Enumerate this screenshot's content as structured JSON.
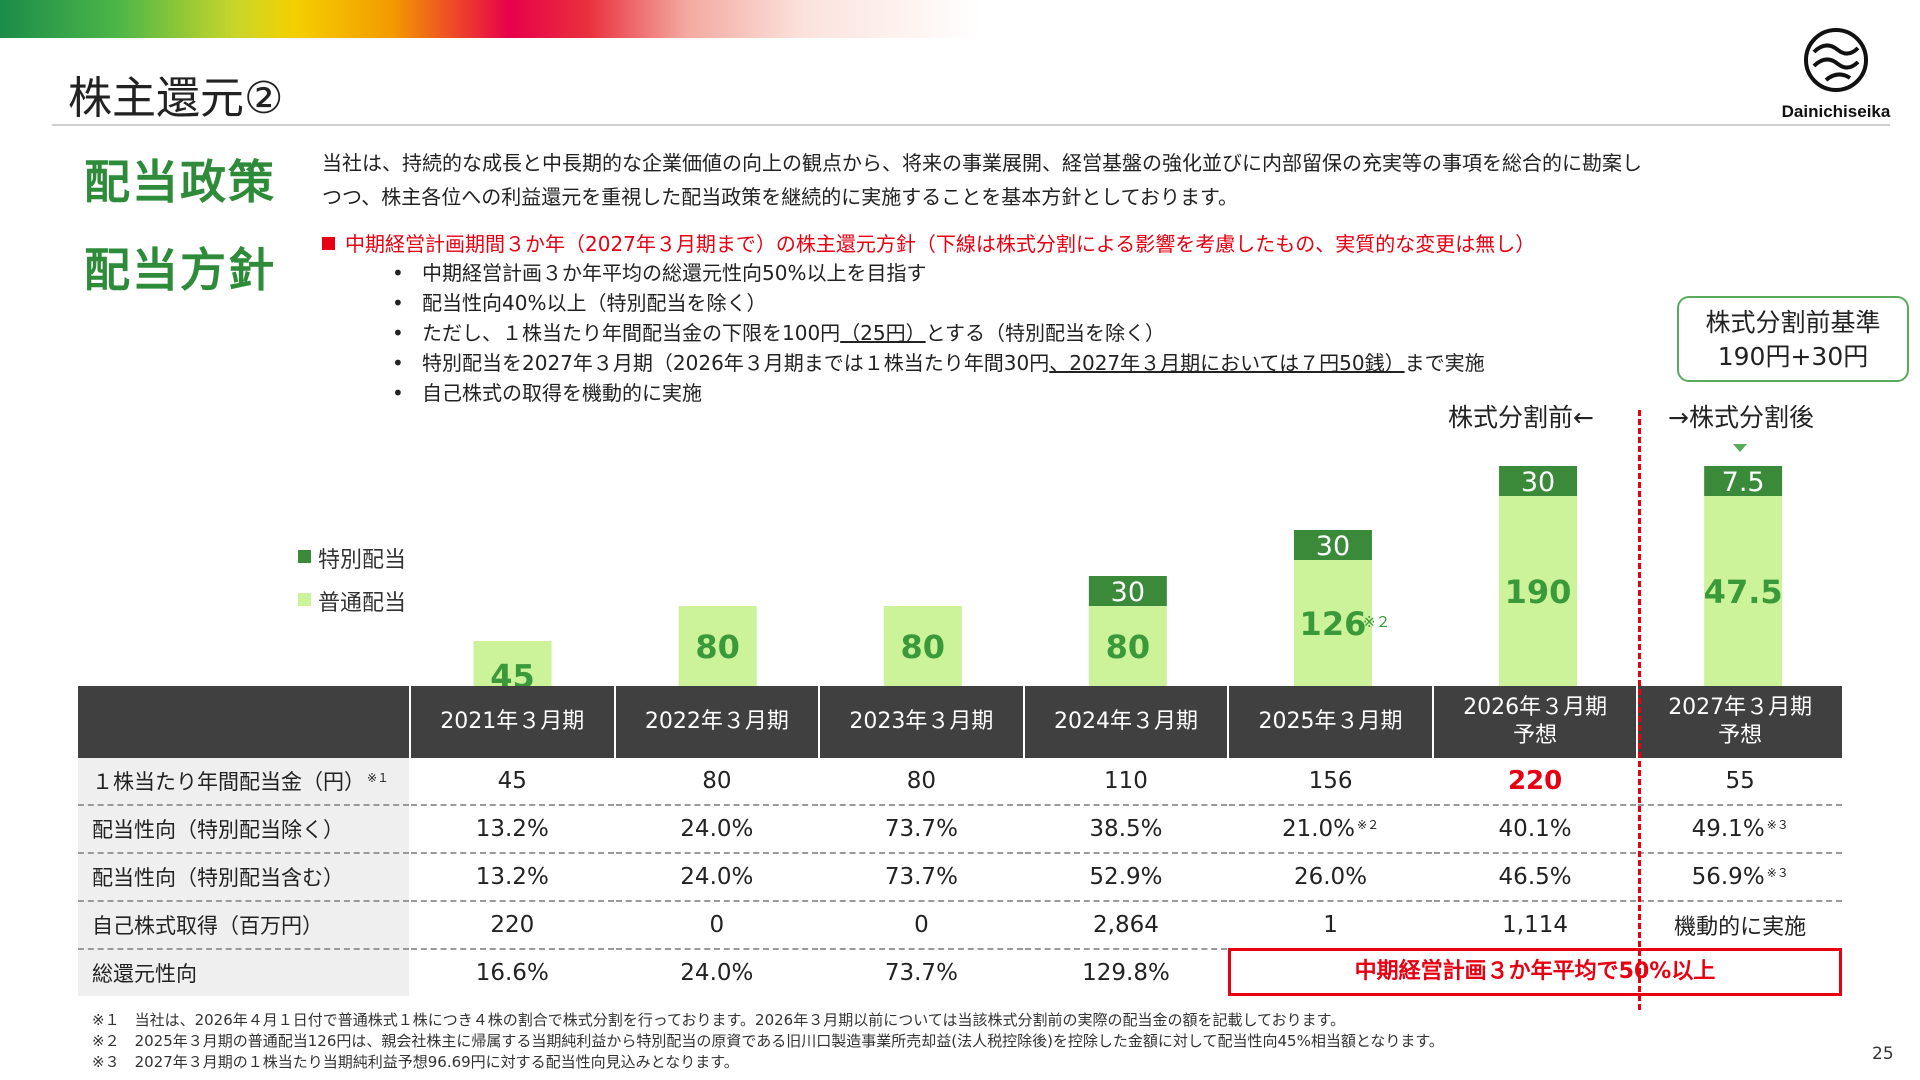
{
  "title": "株主還元②",
  "logo_text": "Dainichiseika",
  "policy": {
    "heading": "配当政策",
    "line1": "当社は、持続的な成長と中長期的な企業価値の向上の観点から、将来の事業展開、経営基盤の強化並びに内部留保の充実等の事項を総合的に勘案し",
    "line2": "つつ、株主各位への利益還元を重視した配当政策を継続的に実施することを基本方針としております。"
  },
  "plan": {
    "heading": "配当方針",
    "subhead": "中期経営計画期間３か年（2027年３月期まで）の株主還元方針（下線は株式分割による影響を考慮したもの、実質的な変更は無し）",
    "b1": "中期経営計画３か年平均の総還元性向50%以上を目指す",
    "b2": "配当性向40%以上（特別配当を除く）",
    "b3a": "ただし、１株当たり年間配当金の下限を100円",
    "b3b": "（25円）",
    "b3c": "とする（特別配当を除く）",
    "b4a": "特別配当を2027年３月期（2026年３月期までは１株当たり年間30円",
    "b4b": "、2027年３月期においては７円50銭）",
    "b4c": "まで実施",
    "b5": "自己株式の取得を機動的に実施"
  },
  "callout": {
    "line1": "株式分割前基準",
    "line2": "190円+30円"
  },
  "split_before": "株式分割前←",
  "split_after": "→株式分割後",
  "legend": {
    "special": "特別配当",
    "regular": "普通配当"
  },
  "colors": {
    "special": "#3a8a3a",
    "regular": "#ccf29a",
    "label_green": "#3a9a3a",
    "accent_red": "#e60012",
    "header_bg": "#404040"
  },
  "chart_data": {
    "type": "bar",
    "stacked": true,
    "categories": [
      "2021年３月期",
      "2022年３月期",
      "2023年３月期",
      "2024年３月期",
      "2025年３月期",
      "2026年３月期 予想",
      "2027年３月期 予想"
    ],
    "series": [
      {
        "name": "普通配当",
        "values": [
          45,
          80,
          80,
          80,
          126,
          190,
          47.5
        ],
        "labels": [
          "45",
          "80",
          "80",
          "80",
          "126",
          "190",
          "47.5"
        ]
      },
      {
        "name": "特別配当",
        "values": [
          0,
          0,
          0,
          30,
          30,
          30,
          7.5
        ],
        "labels": [
          "",
          "",
          "",
          "30",
          "30",
          "30",
          "7.5"
        ]
      }
    ],
    "annotations": [
      {
        "category": "2025年３月期",
        "text": "※２"
      }
    ],
    "note": "2027年３月期は株式分割後の値"
  },
  "table": {
    "headers": [
      "2021年３月期",
      "2022年３月期",
      "2023年３月期",
      "2024年３月期",
      "2025年３月期",
      "2026年３月期",
      "2027年３月期"
    ],
    "header_sub": [
      "",
      "",
      "",
      "",
      "",
      "予想",
      "予想"
    ],
    "rows": [
      {
        "label": "１株当たり年間配当金（円）",
        "note": "※１",
        "cells": [
          "45",
          "80",
          "80",
          "110",
          "156",
          "220",
          "55"
        ]
      },
      {
        "label": "配当性向（特別配当除く）",
        "cells": [
          "13.2%",
          "24.0%",
          "73.7%",
          "38.5%",
          "21.0%",
          "40.1%",
          "49.1%"
        ],
        "cell_notes": [
          "",
          "",
          "",
          "",
          "※２",
          "",
          "※３"
        ]
      },
      {
        "label": "配当性向（特別配当含む）",
        "cells": [
          "13.2%",
          "24.0%",
          "73.7%",
          "52.9%",
          "26.0%",
          "46.5%",
          "56.9%"
        ],
        "cell_notes": [
          "",
          "",
          "",
          "",
          "",
          "",
          "※３"
        ]
      },
      {
        "label": "自己株式取得（百万円）",
        "cells": [
          "220",
          "0",
          "0",
          "2,864",
          "1",
          "1,114",
          "機動的に実施"
        ]
      },
      {
        "label": "総還元性向",
        "cells": [
          "16.6%",
          "24.0%",
          "73.7%",
          "129.8%"
        ]
      }
    ],
    "target_box": "中期経営計画３か年平均で50%以上"
  },
  "notes": [
    "※１　当社は、2026年４月１日付で普通株式１株につき４株の割合で株式分割を行っております。2026年３月期以前については当該株式分割前の実際の配当金の額を記載しております。",
    "※２　2025年３月期の普通配当126円は、親会社株主に帰属する当期純利益から特別配当の原資である旧川口製造事業所売却益(法人税控除後)を控除した金額に対して配当性向45%相当額となります。",
    "※３　2027年３月期の１株当たり当期純利益予想96.69円に対する配当性向見込みとなります。"
  ],
  "page_number": "25"
}
